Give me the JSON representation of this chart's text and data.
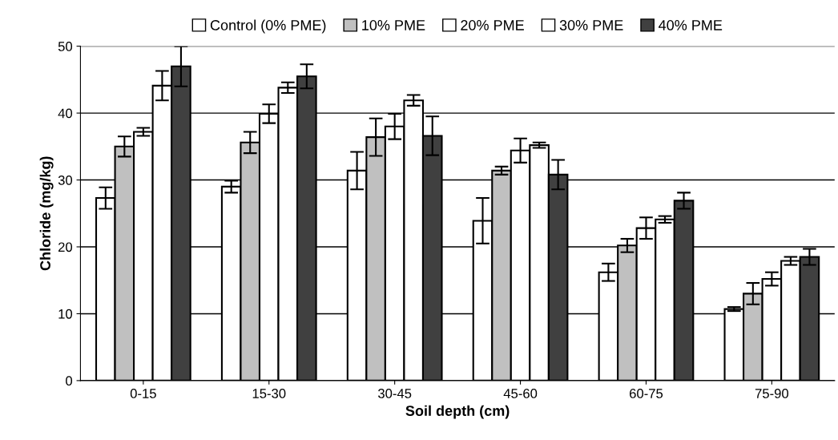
{
  "chart_data": {
    "type": "bar",
    "xlabel": "Soil depth (cm)",
    "ylabel": "Chloride (mg/kg)",
    "categories": [
      "0-15",
      "15-30",
      "30-45",
      "45-60",
      "60-75",
      "75-90"
    ],
    "series": [
      {
        "name": "Control (0% PME)",
        "color": "#ffffff",
        "values": [
          27.3,
          29,
          31.4,
          23.9,
          16.2,
          10.7
        ],
        "errors": [
          1.6,
          0.9,
          2.8,
          3.4,
          1.3,
          0.3
        ]
      },
      {
        "name": "10% PME",
        "color": "#c0c0c0",
        "values": [
          35,
          35.6,
          36.4,
          31.4,
          20.2,
          13
        ],
        "errors": [
          1.5,
          1.6,
          2.8,
          0.6,
          1,
          1.6
        ]
      },
      {
        "name": "20% PME",
        "color": "#ffffff",
        "values": [
          37.2,
          39.9,
          38,
          34.4,
          22.8,
          15.2
        ],
        "errors": [
          0.6,
          1.4,
          1.9,
          1.8,
          1.6,
          1
        ]
      },
      {
        "name": "30% PME",
        "color": "#ffffff",
        "values": [
          44.1,
          43.8,
          41.9,
          35.2,
          24.1,
          17.9
        ],
        "errors": [
          2.2,
          0.8,
          0.8,
          0.4,
          0.5,
          0.6
        ]
      },
      {
        "name": "40% PME",
        "color": "#404040",
        "values": [
          47,
          45.5,
          36.6,
          30.8,
          26.9,
          18.5
        ],
        "errors": [
          3,
          1.8,
          2.9,
          2.2,
          1.2,
          1.2
        ]
      }
    ],
    "ylim": [
      0,
      50
    ],
    "yticks": [
      0,
      10,
      20,
      30,
      40,
      50
    ],
    "grid": "y",
    "legend": "top"
  }
}
